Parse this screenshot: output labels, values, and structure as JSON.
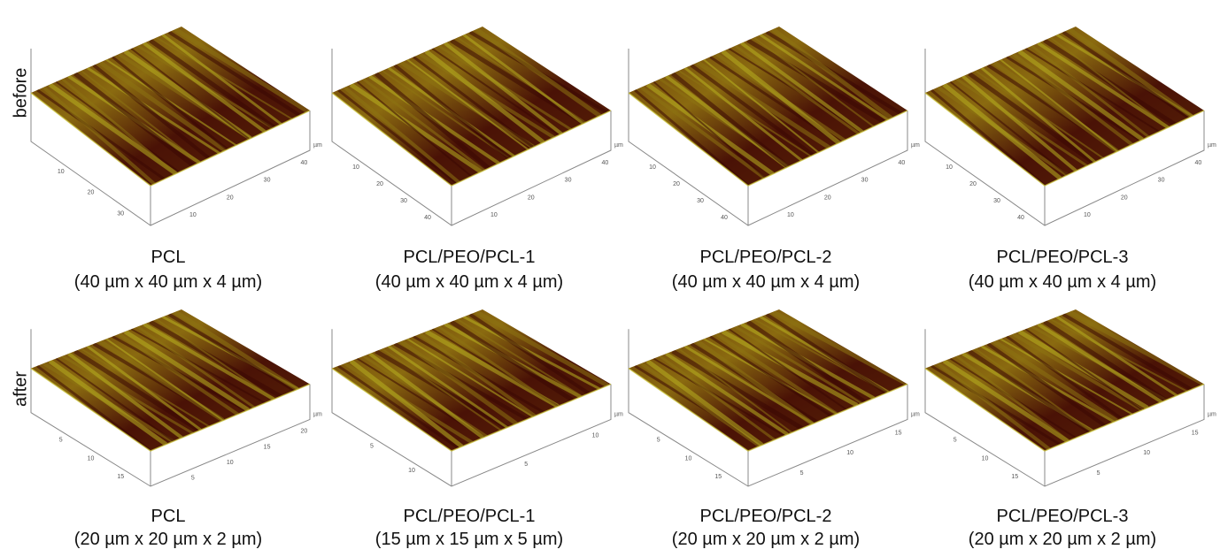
{
  "rows": [
    {
      "label": "before",
      "panels": [
        {
          "title": "PCL",
          "size": "(40 µm x 40 µm x 4 µm)",
          "axis_a": [
            "10",
            "20",
            "30"
          ],
          "axis_b": [
            "10",
            "20",
            "30",
            "40"
          ],
          "unit": "µm"
        },
        {
          "title": "PCL/PEO/PCL-1",
          "size": "(40 µm x 40 µm x 4 µm)",
          "axis_a": [
            "10",
            "20",
            "30",
            "40"
          ],
          "axis_b": [
            "10",
            "20",
            "30",
            "40"
          ],
          "unit": "µm"
        },
        {
          "title": "PCL/PEO/PCL-2",
          "size": "(40 µm x 40 µm x 4 µm)",
          "axis_a": [
            "10",
            "20",
            "30",
            "40"
          ],
          "axis_b": [
            "10",
            "20",
            "30",
            "40"
          ],
          "unit": "µm"
        },
        {
          "title": "PCL/PEO/PCL-3",
          "size": "(40 µm x 40 µm x 4 µm)",
          "axis_a": [
            "10",
            "20",
            "30",
            "40"
          ],
          "axis_b": [
            "10",
            "20",
            "30",
            "40"
          ],
          "unit": "µm"
        }
      ]
    },
    {
      "label": "after",
      "panels": [
        {
          "title": "PCL",
          "size": "(20 µm x 20 µm x 2 µm)",
          "axis_a": [
            "5",
            "10",
            "15"
          ],
          "axis_b": [
            "5",
            "10",
            "15",
            "20"
          ],
          "unit": "µm"
        },
        {
          "title": "PCL/PEO/PCL-1",
          "size": "(15 µm x 15 µm x 5 µm)",
          "axis_a": [
            "5",
            "10"
          ],
          "axis_b": [
            "5",
            "10"
          ],
          "unit": "µm"
        },
        {
          "title": "PCL/PEO/PCL-2",
          "size": "(20 µm x 20 µm x 2 µm)",
          "axis_a": [
            "5",
            "10",
            "15"
          ],
          "axis_b": [
            "5",
            "10",
            "15"
          ],
          "unit": "µm"
        },
        {
          "title": "PCL/PEO/PCL-3",
          "size": "(20 µm x 20 µm x 2 µm)",
          "axis_a": [
            "5",
            "10",
            "15"
          ],
          "axis_b": [
            "5",
            "10",
            "15"
          ],
          "unit": "µm"
        }
      ]
    }
  ]
}
